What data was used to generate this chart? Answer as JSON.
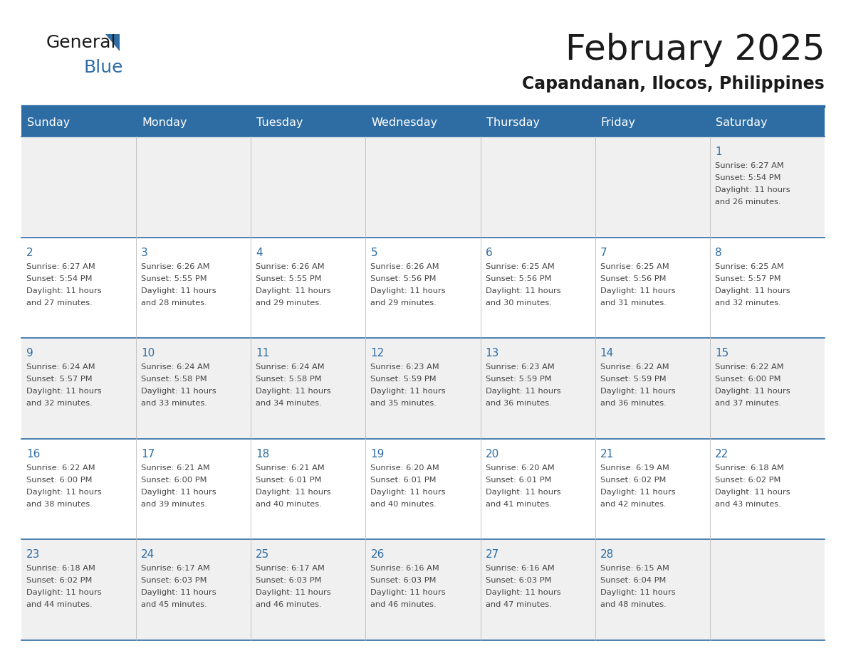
{
  "title": "February 2025",
  "subtitle": "Capandanan, Ilocos, Philippines",
  "header_bg": "#2E6DA4",
  "header_text_color": "#FFFFFF",
  "row_bg_odd": "#F0F0F0",
  "row_bg_even": "#FFFFFF",
  "line_color": "#2E6DA4",
  "day_number_color": "#2E6DA4",
  "cell_text_color": "#444444",
  "days_of_week": [
    "Sunday",
    "Monday",
    "Tuesday",
    "Wednesday",
    "Thursday",
    "Friday",
    "Saturday"
  ],
  "calendar_data": [
    [
      null,
      null,
      null,
      null,
      null,
      null,
      {
        "day": 1,
        "sunrise": "6:27 AM",
        "sunset": "5:54 PM",
        "daylight_hours": 11,
        "daylight_minutes": 26
      }
    ],
    [
      {
        "day": 2,
        "sunrise": "6:27 AM",
        "sunset": "5:54 PM",
        "daylight_hours": 11,
        "daylight_minutes": 27
      },
      {
        "day": 3,
        "sunrise": "6:26 AM",
        "sunset": "5:55 PM",
        "daylight_hours": 11,
        "daylight_minutes": 28
      },
      {
        "day": 4,
        "sunrise": "6:26 AM",
        "sunset": "5:55 PM",
        "daylight_hours": 11,
        "daylight_minutes": 29
      },
      {
        "day": 5,
        "sunrise": "6:26 AM",
        "sunset": "5:56 PM",
        "daylight_hours": 11,
        "daylight_minutes": 29
      },
      {
        "day": 6,
        "sunrise": "6:25 AM",
        "sunset": "5:56 PM",
        "daylight_hours": 11,
        "daylight_minutes": 30
      },
      {
        "day": 7,
        "sunrise": "6:25 AM",
        "sunset": "5:56 PM",
        "daylight_hours": 11,
        "daylight_minutes": 31
      },
      {
        "day": 8,
        "sunrise": "6:25 AM",
        "sunset": "5:57 PM",
        "daylight_hours": 11,
        "daylight_minutes": 32
      }
    ],
    [
      {
        "day": 9,
        "sunrise": "6:24 AM",
        "sunset": "5:57 PM",
        "daylight_hours": 11,
        "daylight_minutes": 32
      },
      {
        "day": 10,
        "sunrise": "6:24 AM",
        "sunset": "5:58 PM",
        "daylight_hours": 11,
        "daylight_minutes": 33
      },
      {
        "day": 11,
        "sunrise": "6:24 AM",
        "sunset": "5:58 PM",
        "daylight_hours": 11,
        "daylight_minutes": 34
      },
      {
        "day": 12,
        "sunrise": "6:23 AM",
        "sunset": "5:59 PM",
        "daylight_hours": 11,
        "daylight_minutes": 35
      },
      {
        "day": 13,
        "sunrise": "6:23 AM",
        "sunset": "5:59 PM",
        "daylight_hours": 11,
        "daylight_minutes": 36
      },
      {
        "day": 14,
        "sunrise": "6:22 AM",
        "sunset": "5:59 PM",
        "daylight_hours": 11,
        "daylight_minutes": 36
      },
      {
        "day": 15,
        "sunrise": "6:22 AM",
        "sunset": "6:00 PM",
        "daylight_hours": 11,
        "daylight_minutes": 37
      }
    ],
    [
      {
        "day": 16,
        "sunrise": "6:22 AM",
        "sunset": "6:00 PM",
        "daylight_hours": 11,
        "daylight_minutes": 38
      },
      {
        "day": 17,
        "sunrise": "6:21 AM",
        "sunset": "6:00 PM",
        "daylight_hours": 11,
        "daylight_minutes": 39
      },
      {
        "day": 18,
        "sunrise": "6:21 AM",
        "sunset": "6:01 PM",
        "daylight_hours": 11,
        "daylight_minutes": 40
      },
      {
        "day": 19,
        "sunrise": "6:20 AM",
        "sunset": "6:01 PM",
        "daylight_hours": 11,
        "daylight_minutes": 40
      },
      {
        "day": 20,
        "sunrise": "6:20 AM",
        "sunset": "6:01 PM",
        "daylight_hours": 11,
        "daylight_minutes": 41
      },
      {
        "day": 21,
        "sunrise": "6:19 AM",
        "sunset": "6:02 PM",
        "daylight_hours": 11,
        "daylight_minutes": 42
      },
      {
        "day": 22,
        "sunrise": "6:18 AM",
        "sunset": "6:02 PM",
        "daylight_hours": 11,
        "daylight_minutes": 43
      }
    ],
    [
      {
        "day": 23,
        "sunrise": "6:18 AM",
        "sunset": "6:02 PM",
        "daylight_hours": 11,
        "daylight_minutes": 44
      },
      {
        "day": 24,
        "sunrise": "6:17 AM",
        "sunset": "6:03 PM",
        "daylight_hours": 11,
        "daylight_minutes": 45
      },
      {
        "day": 25,
        "sunrise": "6:17 AM",
        "sunset": "6:03 PM",
        "daylight_hours": 11,
        "daylight_minutes": 46
      },
      {
        "day": 26,
        "sunrise": "6:16 AM",
        "sunset": "6:03 PM",
        "daylight_hours": 11,
        "daylight_minutes": 46
      },
      {
        "day": 27,
        "sunrise": "6:16 AM",
        "sunset": "6:03 PM",
        "daylight_hours": 11,
        "daylight_minutes": 47
      },
      {
        "day": 28,
        "sunrise": "6:15 AM",
        "sunset": "6:04 PM",
        "daylight_hours": 11,
        "daylight_minutes": 48
      },
      null
    ]
  ]
}
